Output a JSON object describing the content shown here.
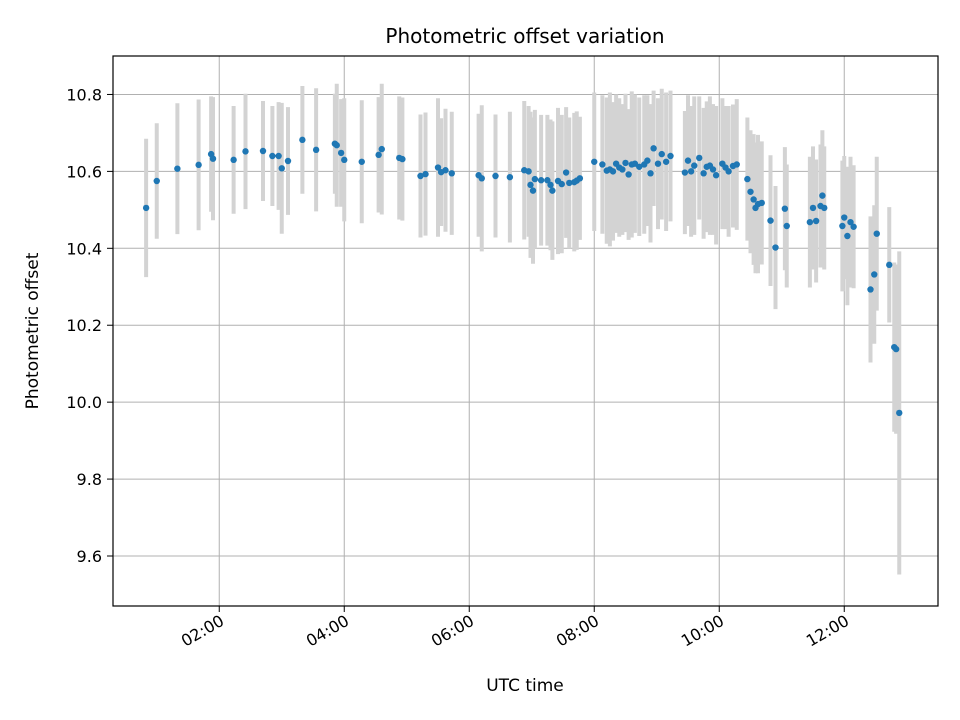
{
  "chart_data": {
    "type": "scatter",
    "title": "Photometric offset variation",
    "xlabel": "UTC time",
    "ylabel": "Photometric offset",
    "x_unit": "hours UTC",
    "xlim": [
      0.3,
      13.5
    ],
    "ylim": [
      9.47,
      10.9
    ],
    "grid": true,
    "x_ticks": [
      {
        "value": 2,
        "label": "02:00"
      },
      {
        "value": 4,
        "label": "04:00"
      },
      {
        "value": 6,
        "label": "06:00"
      },
      {
        "value": 8,
        "label": "08:00"
      },
      {
        "value": 10,
        "label": "10:00"
      },
      {
        "value": 12,
        "label": "12:00"
      }
    ],
    "y_ticks": [
      {
        "value": 9.6,
        "label": "9.6"
      },
      {
        "value": 9.8,
        "label": "9.8"
      },
      {
        "value": 10.0,
        "label": "10.0"
      },
      {
        "value": 10.2,
        "label": "10.2"
      },
      {
        "value": 10.4,
        "label": "10.4"
      },
      {
        "value": 10.6,
        "label": "10.6"
      },
      {
        "value": 10.8,
        "label": "10.8"
      }
    ],
    "colors": {
      "point": "#1f77b4",
      "errorbar": "#d3d3d3",
      "grid": "#b0b0b0"
    },
    "series": [
      {
        "name": "Photometric offset",
        "columns": [
          "time_h",
          "offset",
          "error"
        ],
        "points": [
          [
            0.83,
            10.505,
            0.18
          ],
          [
            1.0,
            10.575,
            0.15
          ],
          [
            1.33,
            10.607,
            0.17
          ],
          [
            1.67,
            10.617,
            0.17
          ],
          [
            1.87,
            10.645,
            0.15
          ],
          [
            1.9,
            10.633,
            0.16
          ],
          [
            2.23,
            10.63,
            0.14
          ],
          [
            2.42,
            10.652,
            0.15
          ],
          [
            2.7,
            10.653,
            0.13
          ],
          [
            2.85,
            10.64,
            0.13
          ],
          [
            2.95,
            10.64,
            0.14
          ],
          [
            3.0,
            10.608,
            0.17
          ],
          [
            3.1,
            10.627,
            0.14
          ],
          [
            3.33,
            10.682,
            0.14
          ],
          [
            3.55,
            10.656,
            0.16
          ],
          [
            3.85,
            10.672,
            0.13
          ],
          [
            3.88,
            10.668,
            0.16
          ],
          [
            3.95,
            10.648,
            0.14
          ],
          [
            4.0,
            10.63,
            0.16
          ],
          [
            4.28,
            10.625,
            0.16
          ],
          [
            4.55,
            10.643,
            0.15
          ],
          [
            4.6,
            10.658,
            0.17
          ],
          [
            4.88,
            10.635,
            0.16
          ],
          [
            4.93,
            10.632,
            0.16
          ],
          [
            5.22,
            10.588,
            0.16
          ],
          [
            5.3,
            10.593,
            0.16
          ],
          [
            5.5,
            10.61,
            0.18
          ],
          [
            5.55,
            10.598,
            0.14
          ],
          [
            5.62,
            10.603,
            0.16
          ],
          [
            5.72,
            10.595,
            0.16
          ],
          [
            6.15,
            10.59,
            0.16
          ],
          [
            6.2,
            10.582,
            0.19
          ],
          [
            6.42,
            10.588,
            0.16
          ],
          [
            6.65,
            10.585,
            0.17
          ],
          [
            6.88,
            10.603,
            0.18
          ],
          [
            6.95,
            10.6,
            0.17
          ],
          [
            6.98,
            10.565,
            0.19
          ],
          [
            7.02,
            10.55,
            0.19
          ],
          [
            7.05,
            10.58,
            0.18
          ],
          [
            7.15,
            10.577,
            0.17
          ],
          [
            7.25,
            10.577,
            0.17
          ],
          [
            7.3,
            10.565,
            0.17
          ],
          [
            7.33,
            10.55,
            0.18
          ],
          [
            7.42,
            10.575,
            0.19
          ],
          [
            7.48,
            10.567,
            0.18
          ],
          [
            7.55,
            10.597,
            0.17
          ],
          [
            7.6,
            10.57,
            0.17
          ],
          [
            7.68,
            10.572,
            0.18
          ],
          [
            7.72,
            10.576,
            0.18
          ],
          [
            7.77,
            10.582,
            0.16
          ],
          [
            8.0,
            10.625,
            0.18
          ],
          [
            8.13,
            10.618,
            0.18
          ],
          [
            8.2,
            10.602,
            0.19
          ],
          [
            8.25,
            10.605,
            0.2
          ],
          [
            8.3,
            10.6,
            0.18
          ],
          [
            8.35,
            10.62,
            0.18
          ],
          [
            8.4,
            10.61,
            0.18
          ],
          [
            8.45,
            10.605,
            0.17
          ],
          [
            8.5,
            10.622,
            0.18
          ],
          [
            8.55,
            10.592,
            0.17
          ],
          [
            8.6,
            10.618,
            0.19
          ],
          [
            8.65,
            10.62,
            0.18
          ],
          [
            8.72,
            10.612,
            0.18
          ],
          [
            8.8,
            10.618,
            0.18
          ],
          [
            8.85,
            10.628,
            0.17
          ],
          [
            8.9,
            10.595,
            0.18
          ],
          [
            8.95,
            10.66,
            0.15
          ],
          [
            9.02,
            10.62,
            0.17
          ],
          [
            9.08,
            10.645,
            0.17
          ],
          [
            9.15,
            10.625,
            0.18
          ],
          [
            9.22,
            10.64,
            0.17
          ],
          [
            9.45,
            10.597,
            0.16
          ],
          [
            9.5,
            10.628,
            0.17
          ],
          [
            9.55,
            10.6,
            0.17
          ],
          [
            9.6,
            10.615,
            0.18
          ],
          [
            9.68,
            10.635,
            0.16
          ],
          [
            9.75,
            10.595,
            0.17
          ],
          [
            9.8,
            10.612,
            0.17
          ],
          [
            9.85,
            10.615,
            0.18
          ],
          [
            9.9,
            10.605,
            0.17
          ],
          [
            9.95,
            10.59,
            0.18
          ],
          [
            10.05,
            10.62,
            0.17
          ],
          [
            10.1,
            10.61,
            0.16
          ],
          [
            10.15,
            10.6,
            0.17
          ],
          [
            10.22,
            10.614,
            0.16
          ],
          [
            10.28,
            10.618,
            0.17
          ],
          [
            10.45,
            10.58,
            0.16
          ],
          [
            10.5,
            10.547,
            0.16
          ],
          [
            10.55,
            10.527,
            0.17
          ],
          [
            10.58,
            10.505,
            0.17
          ],
          [
            10.62,
            10.515,
            0.18
          ],
          [
            10.68,
            10.518,
            0.16
          ],
          [
            10.82,
            10.472,
            0.17
          ],
          [
            10.9,
            10.402,
            0.16
          ],
          [
            11.05,
            10.503,
            0.16
          ],
          [
            11.08,
            10.458,
            0.16
          ],
          [
            11.45,
            10.468,
            0.17
          ],
          [
            11.5,
            10.505,
            0.16
          ],
          [
            11.55,
            10.471,
            0.16
          ],
          [
            11.62,
            10.51,
            0.16
          ],
          [
            11.65,
            10.537,
            0.17
          ],
          [
            11.68,
            10.505,
            0.16
          ],
          [
            11.97,
            10.458,
            0.17
          ],
          [
            12.0,
            10.48,
            0.16
          ],
          [
            12.05,
            10.432,
            0.18
          ],
          [
            12.1,
            10.468,
            0.17
          ],
          [
            12.15,
            10.456,
            0.16
          ],
          [
            12.42,
            10.293,
            0.19
          ],
          [
            12.48,
            10.332,
            0.18
          ],
          [
            12.52,
            10.438,
            0.2
          ],
          [
            12.72,
            10.357,
            0.15
          ],
          [
            12.8,
            10.143,
            0.22
          ],
          [
            12.83,
            10.138,
            0.22
          ],
          [
            12.88,
            9.972,
            0.42
          ]
        ]
      }
    ]
  }
}
